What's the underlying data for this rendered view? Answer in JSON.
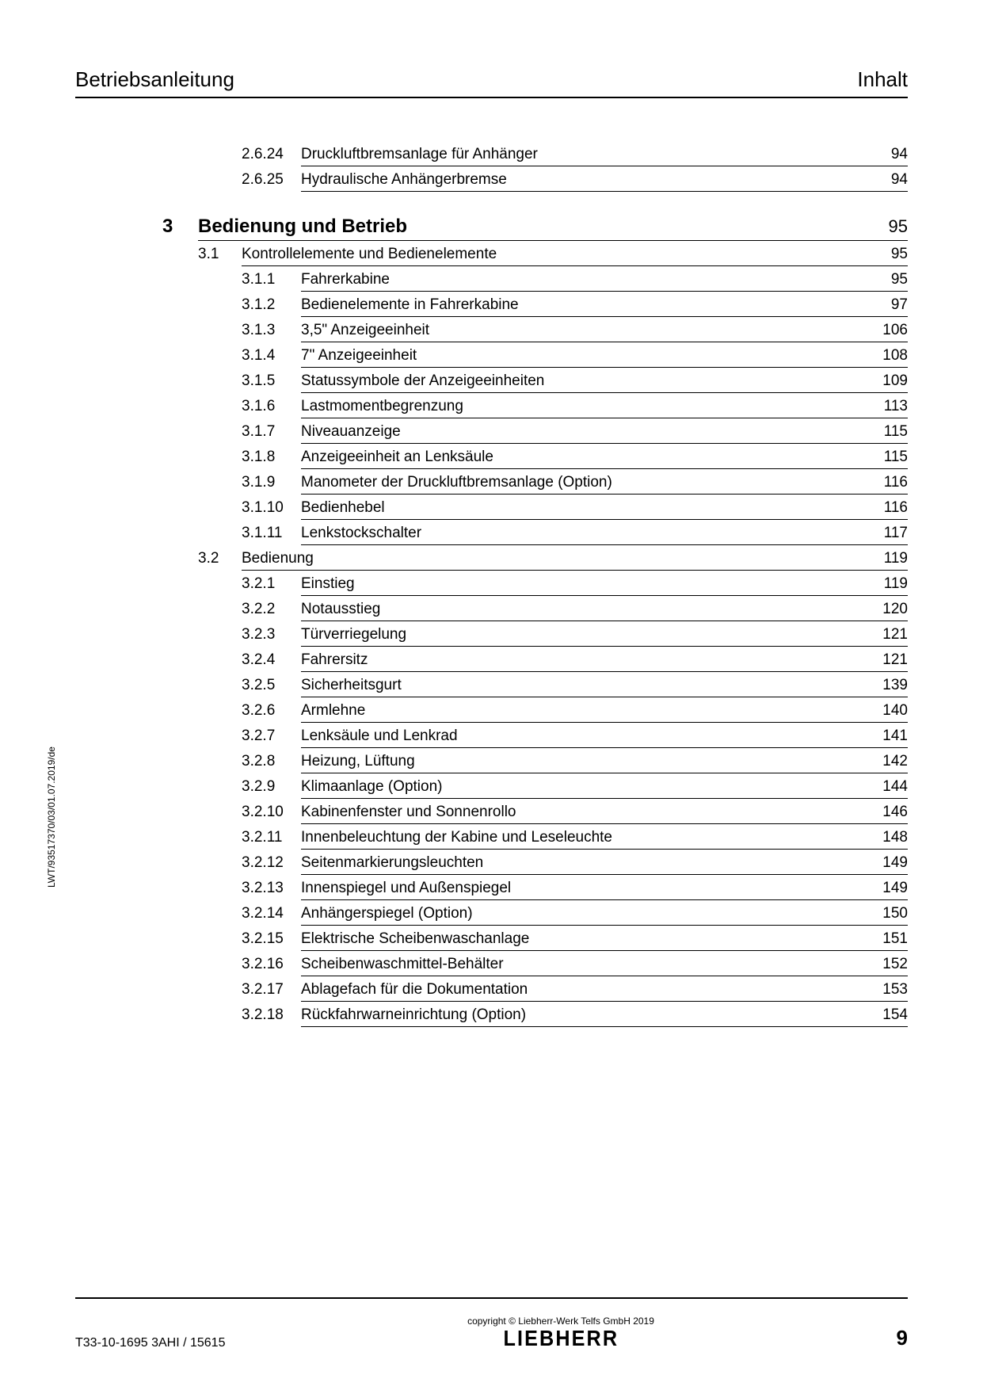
{
  "header": {
    "left": "Betriebsanleitung",
    "right": "Inhalt"
  },
  "colors": {
    "text": "#000000",
    "background": "#ffffff",
    "rule": "#000000"
  },
  "fonts": {
    "body_family": "Arial",
    "header_size": 26,
    "chapter_size": 24,
    "section_size": 19,
    "footer_small": 12,
    "footer_doc": 16,
    "footer_page": 26
  },
  "toc": {
    "pre_subs": [
      {
        "num": "2.6.24",
        "title": "Druckluftbremsanlage für Anhänger",
        "page": "94"
      },
      {
        "num": "2.6.25",
        "title": "Hydraulische Anhängerbremse",
        "page": "94"
      }
    ],
    "chapter": {
      "num": "3",
      "title": "Bedienung und Betrieb",
      "page": "95"
    },
    "sections": [
      {
        "num": "3.1",
        "title": "Kontrollelemente und Bedienelemente",
        "page": "95",
        "subs": [
          {
            "num": "3.1.1",
            "title": "Fahrerkabine",
            "page": "95"
          },
          {
            "num": "3.1.2",
            "title": "Bedienelemente in Fahrerkabine",
            "page": "97"
          },
          {
            "num": "3.1.3",
            "title": "3,5\" Anzeigeeinheit",
            "page": "106"
          },
          {
            "num": "3.1.4",
            "title": "7\" Anzeigeeinheit",
            "page": "108"
          },
          {
            "num": "3.1.5",
            "title": "Statussymbole der Anzeigeeinheiten",
            "page": "109"
          },
          {
            "num": "3.1.6",
            "title": "Lastmomentbegrenzung",
            "page": "113"
          },
          {
            "num": "3.1.7",
            "title": "Niveauanzeige",
            "page": "115"
          },
          {
            "num": "3.1.8",
            "title": "Anzeigeeinheit an Lenksäule",
            "page": "115"
          },
          {
            "num": "3.1.9",
            "title": "Manometer der Druckluftbremsanlage (Option)",
            "page": "116"
          },
          {
            "num": "3.1.10",
            "title": "Bedienhebel",
            "page": "116"
          },
          {
            "num": "3.1.11",
            "title": "Lenkstockschalter",
            "page": "117"
          }
        ]
      },
      {
        "num": "3.2",
        "title": "Bedienung",
        "page": "119",
        "subs": [
          {
            "num": "3.2.1",
            "title": "Einstieg",
            "page": "119"
          },
          {
            "num": "3.2.2",
            "title": "Notausstieg",
            "page": "120"
          },
          {
            "num": "3.2.3",
            "title": "Türverriegelung",
            "page": "121"
          },
          {
            "num": "3.2.4",
            "title": "Fahrersitz",
            "page": "121"
          },
          {
            "num": "3.2.5",
            "title": "Sicherheitsgurt",
            "page": "139"
          },
          {
            "num": "3.2.6",
            "title": "Armlehne",
            "page": "140"
          },
          {
            "num": "3.2.7",
            "title": "Lenksäule und Lenkrad",
            "page": "141"
          },
          {
            "num": "3.2.8",
            "title": "Heizung, Lüftung",
            "page": "142"
          },
          {
            "num": "3.2.9",
            "title": "Klimaanlage (Option)",
            "page": "144"
          },
          {
            "num": "3.2.10",
            "title": "Kabinenfenster und Sonnenrollo",
            "page": "146"
          },
          {
            "num": "3.2.11",
            "title": "Innenbeleuchtung der Kabine und Leseleuchte",
            "page": "148"
          },
          {
            "num": "3.2.12",
            "title": "Seitenmarkierungsleuchten",
            "page": "149"
          },
          {
            "num": "3.2.13",
            "title": "Innenspiegel und Außenspiegel",
            "page": "149"
          },
          {
            "num": "3.2.14",
            "title": "Anhängerspiegel (Option)",
            "page": "150"
          },
          {
            "num": "3.2.15",
            "title": "Elektrische Scheibenwaschanlage",
            "page": "151"
          },
          {
            "num": "3.2.16",
            "title": "Scheibenwaschmittel-Behälter",
            "page": "152"
          },
          {
            "num": "3.2.17",
            "title": "Ablagefach für die Dokumentation",
            "page": "153"
          },
          {
            "num": "3.2.18",
            "title": "Rückfahrwarneinrichtung (Option)",
            "page": "154"
          }
        ]
      }
    ]
  },
  "footer": {
    "doc_id": "T33-10-1695 3AHI / 15615",
    "copyright": "copyright © Liebherr-Werk Telfs GmbH 2019",
    "logo": "LIEBHERR",
    "page": "9"
  },
  "side_text": "LWT/93517370/03/01.07.2019/de"
}
